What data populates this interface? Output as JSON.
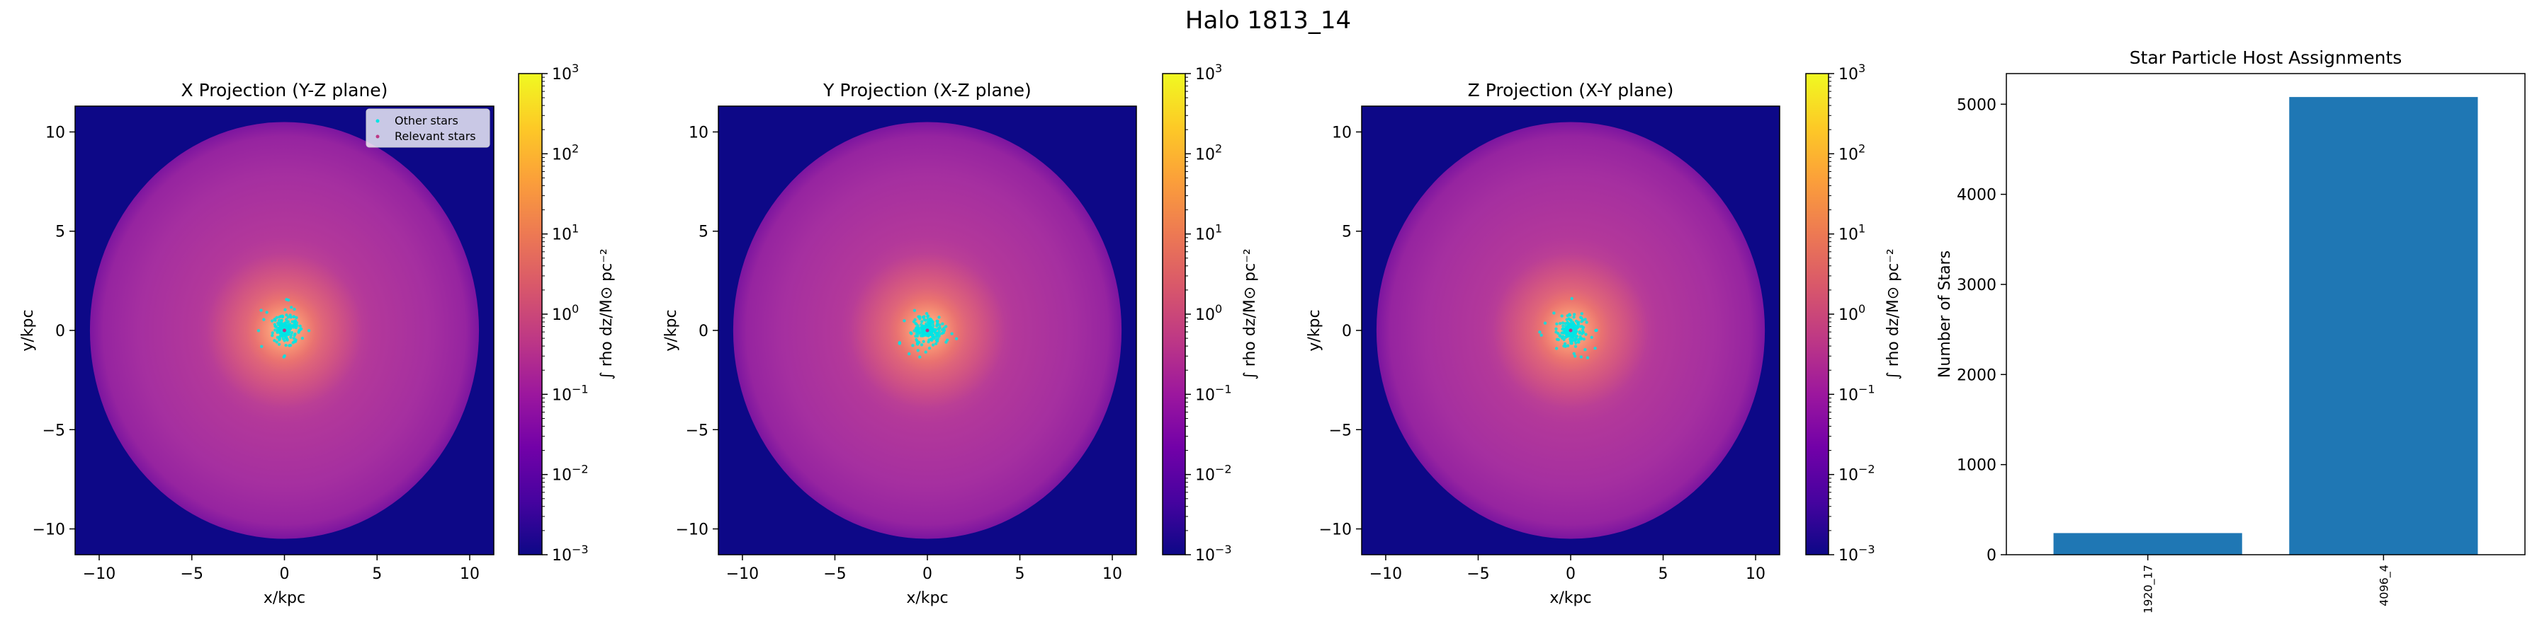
{
  "figure": {
    "title": "Halo 1813_14"
  },
  "colors": {
    "background": "#0d0887",
    "cyan": "#00e5e5",
    "bar": "#1f77b4",
    "colormap": [
      "#0d0887",
      "#46039f",
      "#7201a8",
      "#9c179e",
      "#bd3786",
      "#d8576b",
      "#ed7953",
      "#fb9f3a",
      "#fdca26",
      "#f0f921"
    ]
  },
  "chart_data": [
    {
      "type": "heatmap",
      "title": "X Projection (Y-Z plane)",
      "xlabel": "x/kpc",
      "ylabel": "y/kpc",
      "xlim": [
        -11.3,
        11.3
      ],
      "ylim": [
        -11.3,
        11.3
      ],
      "xticks": [
        "−10",
        "−5",
        "0",
        "5",
        "10"
      ],
      "yticks": [
        "−10",
        "−5",
        "0",
        "5",
        "10"
      ],
      "tick_values": [
        -10,
        -5,
        0,
        5,
        10
      ],
      "colorbar": {
        "label": "∫ rho dz/M⊙ pc⁻²",
        "scale": "log",
        "range": [
          0.001,
          1000
        ],
        "ticks": [
          {
            "base": "10",
            "exp": "3",
            "value": 1000
          },
          {
            "base": "10",
            "exp": "2",
            "value": 100
          },
          {
            "base": "10",
            "exp": "1",
            "value": 10
          },
          {
            "base": "10",
            "exp": "0",
            "value": 1
          },
          {
            "base": "10",
            "exp": "−1",
            "value": 0.1
          },
          {
            "base": "10",
            "exp": "−2",
            "value": 0.01
          },
          {
            "base": "10",
            "exp": "−3",
            "value": 0.001
          }
        ]
      },
      "legend": {
        "placement": "top-right",
        "entries": [
          {
            "label": "Other stars",
            "color": "#00e5e5"
          },
          {
            "label": "Relevant stars",
            "color": "#bd3786"
          }
        ]
      },
      "star_cluster_center": [
        0,
        0
      ]
    },
    {
      "type": "heatmap",
      "title": "Y Projection (X-Z plane)",
      "xlabel": "x/kpc",
      "ylabel": "y/kpc",
      "xlim": [
        -11.3,
        11.3
      ],
      "ylim": [
        -11.3,
        11.3
      ],
      "xticks": [
        "−10",
        "−5",
        "0",
        "5",
        "10"
      ],
      "yticks": [
        "−10",
        "−5",
        "0",
        "5",
        "10"
      ],
      "tick_values": [
        -10,
        -5,
        0,
        5,
        10
      ],
      "colorbar": {
        "label": "∫ rho dz/M⊙ pc⁻²",
        "scale": "log",
        "range": [
          0.001,
          1000
        ],
        "ticks": [
          {
            "base": "10",
            "exp": "3",
            "value": 1000
          },
          {
            "base": "10",
            "exp": "2",
            "value": 100
          },
          {
            "base": "10",
            "exp": "1",
            "value": 10
          },
          {
            "base": "10",
            "exp": "0",
            "value": 1
          },
          {
            "base": "10",
            "exp": "−1",
            "value": 0.1
          },
          {
            "base": "10",
            "exp": "−2",
            "value": 0.01
          },
          {
            "base": "10",
            "exp": "−3",
            "value": 0.001
          }
        ]
      },
      "star_cluster_center": [
        0,
        0
      ]
    },
    {
      "type": "heatmap",
      "title": "Z Projection (X-Y plane)",
      "xlabel": "x/kpc",
      "ylabel": "y/kpc",
      "xlim": [
        -11.3,
        11.3
      ],
      "ylim": [
        -11.3,
        11.3
      ],
      "xticks": [
        "−10",
        "−5",
        "0",
        "5",
        "10"
      ],
      "yticks": [
        "−10",
        "−5",
        "0",
        "5",
        "10"
      ],
      "tick_values": [
        -10,
        -5,
        0,
        5,
        10
      ],
      "colorbar": {
        "label": "∫ rho dz/M⊙ pc⁻²",
        "scale": "log",
        "range": [
          0.001,
          1000
        ],
        "ticks": [
          {
            "base": "10",
            "exp": "3",
            "value": 1000
          },
          {
            "base": "10",
            "exp": "2",
            "value": 100
          },
          {
            "base": "10",
            "exp": "1",
            "value": 10
          },
          {
            "base": "10",
            "exp": "0",
            "value": 1
          },
          {
            "base": "10",
            "exp": "−1",
            "value": 0.1
          },
          {
            "base": "10",
            "exp": "−2",
            "value": 0.01
          },
          {
            "base": "10",
            "exp": "−3",
            "value": 0.001
          }
        ]
      },
      "star_cluster_center": [
        0,
        0
      ]
    },
    {
      "type": "bar",
      "title": "Star Particle Host Assignments",
      "xlabel": "",
      "ylabel": "Number of Stars",
      "categories": [
        "1920_17",
        "4096_4"
      ],
      "values": [
        240,
        5080
      ],
      "ylim": [
        0,
        5340
      ],
      "yticks": [
        0,
        1000,
        2000,
        3000,
        4000,
        5000
      ]
    }
  ]
}
